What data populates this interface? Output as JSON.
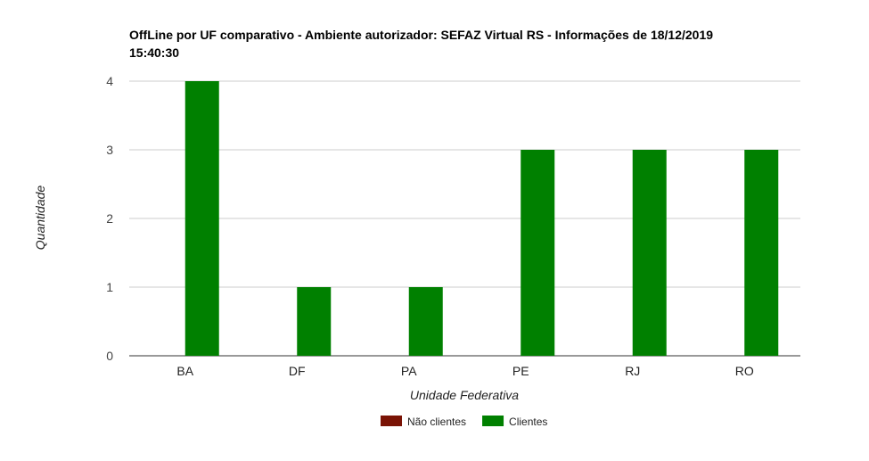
{
  "chart_data": {
    "type": "bar",
    "title_line1": "OffLine por UF comparativo - Ambiente autorizador: SEFAZ Virtual RS - Informações de 18/12/2019",
    "title_line2": "15:40:30",
    "xlabel": "Unidade Federativa",
    "ylabel": "Quantidade",
    "categories": [
      "BA",
      "DF",
      "PA",
      "PE",
      "RJ",
      "RO"
    ],
    "series": [
      {
        "name": "Não clientes",
        "color": "#7a1305",
        "values": [
          0,
          0,
          0,
          0,
          0,
          0
        ]
      },
      {
        "name": "Clientes",
        "color": "#008000",
        "values": [
          4,
          1,
          1,
          3,
          3,
          3
        ]
      }
    ],
    "ylim": [
      0,
      4
    ],
    "yticks": [
      0,
      1,
      2,
      3,
      4
    ],
    "grid": true,
    "legend_position": "bottom"
  }
}
